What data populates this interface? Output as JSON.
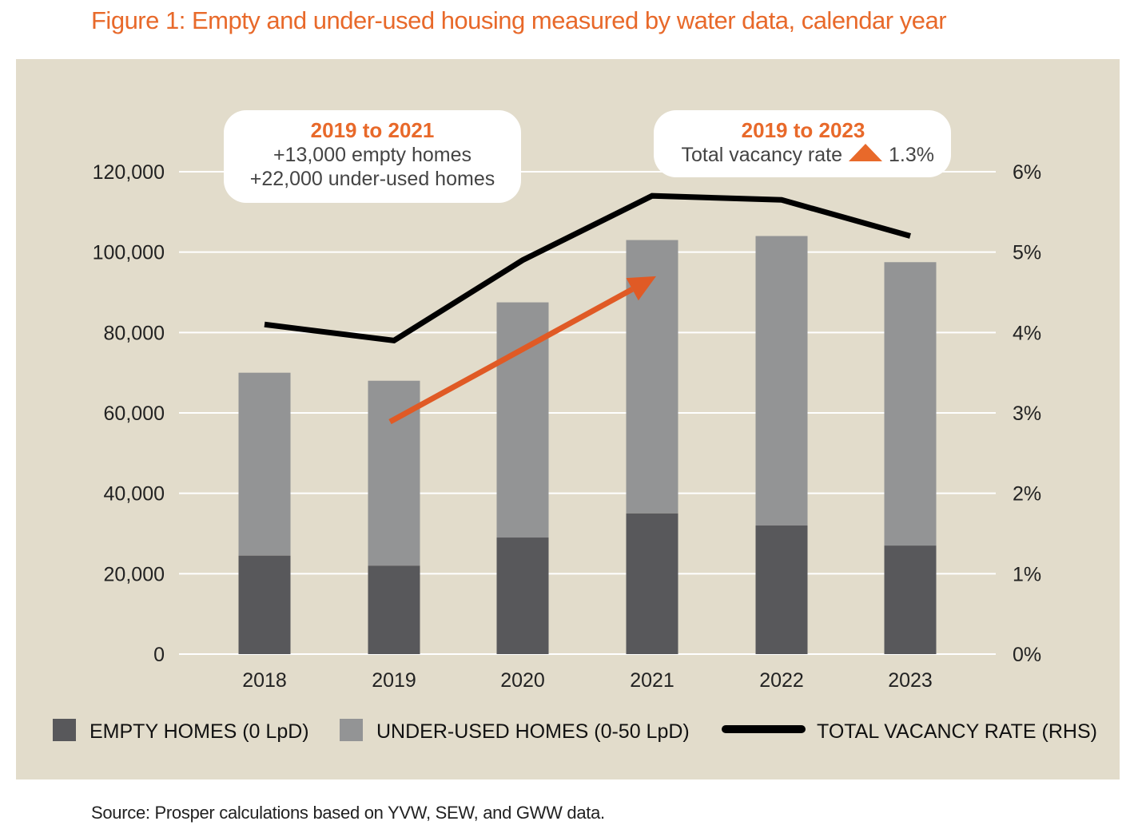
{
  "title": "Figure 1: Empty and under-used housing measured by water data, calendar year",
  "source": "Source: Prosper calculations based on YVW, SEW, and GWW data.",
  "colors": {
    "title": "#e8692a",
    "background": "#e2dccb",
    "empty": "#58585b",
    "underused": "#939495",
    "vacancy": "#000000",
    "arrow": "#e05a25",
    "highlight": "#e8692a"
  },
  "callouts": [
    {
      "heading": "2019 to 2021",
      "lines": [
        "+13,000 empty homes",
        "+22,000 under-used homes"
      ]
    },
    {
      "heading": "2019 to 2023",
      "text": "Total vacancy rate",
      "icon": "triangle-up-icon",
      "value": "1.3%"
    }
  ],
  "chart_data": {
    "type": "bar",
    "stacked": true,
    "categories": [
      "2018",
      "2019",
      "2020",
      "2021",
      "2022",
      "2023"
    ],
    "series": [
      {
        "name": "EMPTY HOMES (0 LpD)",
        "type": "bar",
        "axis": "left",
        "values": [
          24500,
          22000,
          29000,
          35000,
          32000,
          27000
        ]
      },
      {
        "name": "UNDER-USED HOMES (0-50 LpD)",
        "type": "bar",
        "axis": "left",
        "values": [
          45500,
          46000,
          58500,
          68000,
          72000,
          70500
        ]
      },
      {
        "name": "TOTAL VACANCY RATE (RHS)",
        "type": "line",
        "axis": "right",
        "values": [
          4.1,
          3.9,
          4.9,
          5.7,
          5.65,
          5.2
        ]
      }
    ],
    "ylim": [
      0,
      120000
    ],
    "yticks": [
      "0",
      "20,000",
      "40,000",
      "60,000",
      "80,000",
      "100,000",
      "120,000"
    ],
    "y2lim": [
      0,
      6
    ],
    "y2ticks": [
      "0%",
      "1%",
      "2%",
      "3%",
      "4%",
      "5%",
      "6%"
    ],
    "grid": true,
    "legend": "bottom",
    "annotation_arrow": {
      "from": [
        "2019",
        57800
      ],
      "to": [
        "2021",
        94000
      ]
    }
  }
}
